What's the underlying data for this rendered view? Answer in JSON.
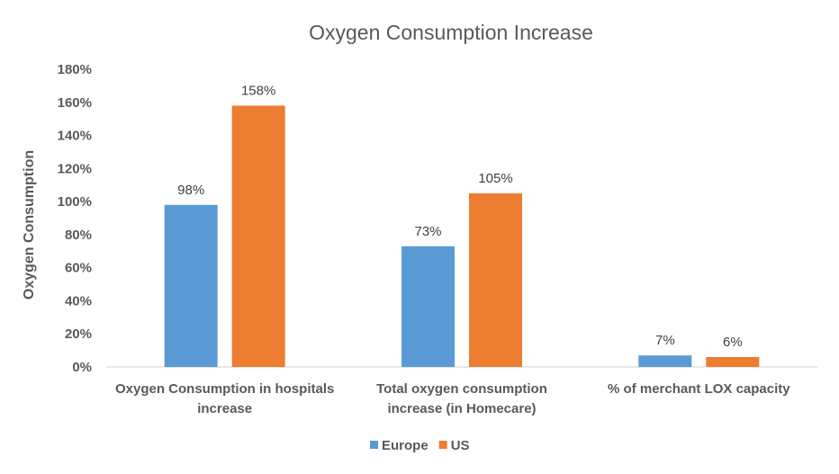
{
  "chart_data": {
    "type": "bar",
    "title": "Oxygen Consumption Increase",
    "xlabel": "",
    "ylabel": "Oxygen Consumption",
    "ylim": [
      0,
      180
    ],
    "yticks": [
      "0%",
      "20%",
      "40%",
      "60%",
      "80%",
      "100%",
      "120%",
      "140%",
      "160%",
      "180%"
    ],
    "categories": [
      [
        "Oxygen Consumption in hospitals",
        "increase"
      ],
      [
        "Total oxygen consumption",
        "increase (in Homecare)"
      ],
      [
        "% of merchant LOX capacity"
      ]
    ],
    "series": [
      {
        "name": "Europe",
        "color": "#5B9BD5",
        "values": [
          98,
          73,
          7
        ],
        "labels": [
          "98%",
          "73%",
          "7%"
        ]
      },
      {
        "name": "US",
        "color": "#ED7D31",
        "values": [
          158,
          105,
          6
        ],
        "labels": [
          "158%",
          "105%",
          "6%"
        ]
      }
    ],
    "grid": false,
    "legend": "bottom"
  }
}
